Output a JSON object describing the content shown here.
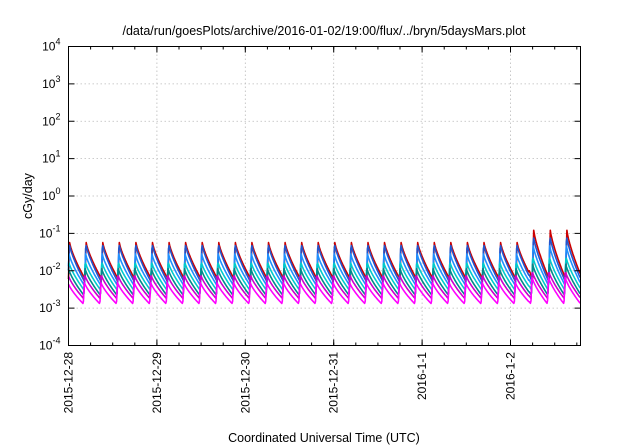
{
  "chart_data": {
    "type": "line",
    "title": "/data/run/goesPlots/archive/2016-01-02/19:00/flux/../bryn/5daysMars.plot",
    "xlabel": "Coordinated Universal Time (UTC)",
    "ylabel": "cGy/day",
    "yscale": "log",
    "ylim": [
      0.0001,
      10000
    ],
    "y_ticks": [
      {
        "base": "10",
        "exp": "-4"
      },
      {
        "base": "10",
        "exp": "-3"
      },
      {
        "base": "10",
        "exp": "-2"
      },
      {
        "base": "10",
        "exp": "-1"
      },
      {
        "base": "10",
        "exp": "0"
      },
      {
        "base": "10",
        "exp": "1"
      },
      {
        "base": "10",
        "exp": "2"
      },
      {
        "base": "10",
        "exp": "3"
      },
      {
        "base": "10",
        "exp": "4"
      }
    ],
    "x_ticks": [
      "2015-12-28",
      "2015-12-29",
      "2015-12-30",
      "2015-12-31",
      "2016-1-1",
      "2016-1-2"
    ],
    "xlim": [
      "2015-12-28",
      "2016-01-02 19:00"
    ],
    "grid": true,
    "legend": "none",
    "cycle_hours": 4.5,
    "series": [
      {
        "color": "#cc0000",
        "peak": 0.06,
        "trough": 0.006,
        "peak_late": 0.13
      },
      {
        "color": "#2255cc",
        "peak": 0.055,
        "trough": 0.005,
        "peak_late": 0.09
      },
      {
        "color": "#1e90ff",
        "peak": 0.03,
        "trough": 0.004,
        "peak_late": 0.05
      },
      {
        "color": "#00cccc",
        "peak": 0.018,
        "trough": 0.003,
        "peak_late": 0.025
      },
      {
        "color": "#008b8b",
        "peak": 0.012,
        "trough": 0.0022,
        "peak_late": 0.016
      },
      {
        "color": "#cc00cc",
        "peak": 0.008,
        "trough": 0.0018,
        "peak_late": 0.01
      },
      {
        "color": "#ff00ff",
        "peak": 0.005,
        "trough": 0.0013,
        "peak_late": 0.007
      }
    ]
  }
}
